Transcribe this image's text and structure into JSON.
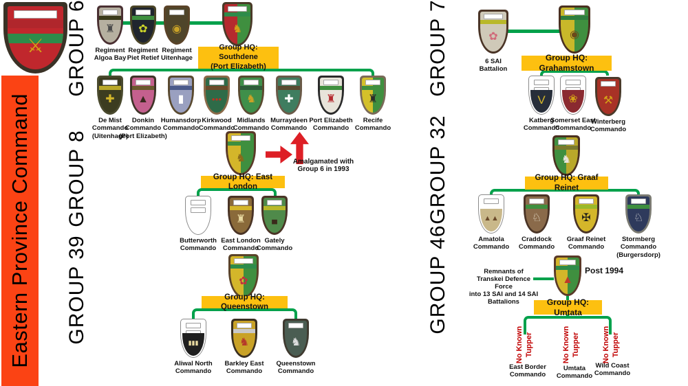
{
  "command": {
    "title": "Eastern Province Command",
    "bar_color": "#fb4314"
  },
  "colors": {
    "connector": "#00A14B",
    "hq_label_bg": "#FDC010",
    "arrow_red": "#DD1F26",
    "no_flash_red": "#C00000"
  },
  "annotations": {
    "amalgamated": "Amalgamated with\nGroup 6 in 1993",
    "post_1994": "Post 1994",
    "remnants": "Remnants of\nTranskei Defence Force\ninto 13 SAI and 14 SAI\nBattalions",
    "no_known": "No Known\nTupper"
  },
  "groups": {
    "g6": {
      "title": "GROUP 6",
      "hq_label": "Group HQ: Southdene\n(Port Elizabeth)"
    },
    "g8": {
      "title": "GROUP 8",
      "hq_label": "Group HQ: East London"
    },
    "g39": {
      "title": "GROUP 39",
      "hq_label": "Group HQ: Queenstown"
    },
    "g7": {
      "title": "GROUP 7",
      "hq_label": "Group HQ: Grahamstown"
    },
    "g32": {
      "title": "GROUP 32",
      "hq_label": "Group HQ: Graaf Reinet"
    },
    "g46": {
      "title": "GROUP 46",
      "hq_label": "Group HQ: Umtata",
      "children": [
        "East Border\nCommando",
        "Umtata\nCommando",
        "Wild Coast\nCommando"
      ]
    }
  },
  "badges": {
    "command": {
      "label": "",
      "border": "#3a3226",
      "slots": 1,
      "band": "#b0262c",
      "field": "#c0272d",
      "stripe": "#2e8b4a",
      "emblem": "⚔",
      "emblemColor": "#d4a017",
      "emblemName": "crossed-swords-icon"
    },
    "algoa_bay": {
      "label": "Regiment\nAlgoa Bay",
      "border": "#4a3032",
      "slots": 1,
      "band": "#3a3a1a",
      "field": "#b6b0a0",
      "emblem": "♜",
      "emblemColor": "#4a4a4a",
      "emblemName": "lighthouse-icon"
    },
    "piet_retief": {
      "label": "Regiment\nPiet Retief",
      "border": "#4a4426",
      "slots": 1,
      "band": "#3f8f3f",
      "field": "#20252e",
      "emblem": "✿",
      "emblemColor": "#cbd42a",
      "emblemName": "protea-icon"
    },
    "uitenhage": {
      "label": "Regiment\nUitenhage",
      "border": "#5a4328",
      "slots": 1,
      "field": "#4f452a",
      "emblem": "◉",
      "emblemColor": "#c9a227",
      "emblemName": "wreath-icon"
    },
    "hq6": {
      "label": "",
      "border": "#4a3a28",
      "slots": 1,
      "band": "#2e8b4a",
      "field": "#b52a2e",
      "field2": "#3f8f3f",
      "emblem": "♞",
      "emblemColor": "#d4a017",
      "emblemName": "elephant-icon"
    },
    "de_mist": {
      "label": "De Mist\nCommando\n(Uitenhage)",
      "border": "#4a4a2e",
      "slots": 1,
      "band": "#b9a82a",
      "field": "#3c3c20",
      "emblem": "✚",
      "emblemColor": "#d4b62a",
      "emblemName": "cross-icon"
    },
    "donkin": {
      "label": "Donkin\nCommando\n(Port Elizabeth)",
      "border": "#3f3428",
      "slots": 1,
      "band": "#6a5a2e",
      "field": "#c4608e",
      "emblem": "▲",
      "emblemColor": "#3a2a20",
      "emblemName": "pyramid-elephant-icon"
    },
    "humansdorp": {
      "label": "Humansdorp\nCommando",
      "border": "#5a4a30",
      "slots": 1,
      "band": "#4a5a8a",
      "field": "#9aa0c0",
      "emblem": "▮",
      "emblemColor": "#ffffff",
      "emblemName": "monument-icon"
    },
    "kirkwood": {
      "label": "Kirkwood\nCommando",
      "border": "#8a6a48",
      "slots": 1,
      "band": "#6b4a2a",
      "field": "#2e6b48",
      "emblem": "●●●",
      "emblemColor": "#c03020",
      "esize": 8,
      "emblemName": "three-discs-icon"
    },
    "midlands": {
      "label": "Midlands\nCommando",
      "border": "#5a4a30",
      "slots": 1,
      "band": "#2e5c3a",
      "field": "#3f8f4a",
      "emblem": "♞",
      "emblemColor": "#c9a227",
      "emblemName": "leopard-icon"
    },
    "murraydeen": {
      "label": "Murraydeen\nCommando",
      "border": "#6a5a48",
      "slots": 1,
      "band": "#5a4a30",
      "field": "#3f7d5f",
      "emblem": "✚",
      "emblemColor": "#ffffff",
      "emblemName": "cross-icon"
    },
    "port_elizabeth": {
      "label": "Port Elizabeth\nCommando",
      "border": "#2b2b2b",
      "slots": 1,
      "band": "#3f8f3f",
      "field": "#e8e4da",
      "emblem": "♜",
      "emblemColor": "#b52a2e",
      "emblemName": "castle-icon"
    },
    "recife": {
      "label": "Recife\nCommando",
      "border": "#7a6a58",
      "slots": 1,
      "band": "#3f8f3f",
      "field": "#d4c02a",
      "field2": "#3f8f3f",
      "emblem": "♜",
      "emblemColor": "#2b2b2b",
      "emblemName": "tower-icon"
    },
    "hq8": {
      "label": "",
      "border": "#5a3a28",
      "slots": 1,
      "band": "#3f8f3f",
      "field": "#d4b62a",
      "field2": "#3f8f3f",
      "emblem": "♞",
      "emblemColor": "#8a6a1a",
      "emblemName": "buffalo-icon"
    },
    "butterworth": {
      "label": "Butterworth\nCommando",
      "ghost": true,
      "slots": 2,
      "field": "#ffffff",
      "emblemName": "blank-flash"
    },
    "east_london_c": {
      "label": "East London\nCommando",
      "border": "#4a3426",
      "slots": 1,
      "band": "#d4b62a",
      "field": "#8a6a3a",
      "emblem": "♜",
      "emblemColor": "#e8d9a0",
      "emblemName": "towers-icon"
    },
    "gately": {
      "label": "Gately\nCommando",
      "border": "#4a3426",
      "slots": 1,
      "band": "#b9b82a",
      "field": "#4f8a4a",
      "emblem": "▄",
      "emblemColor": "#3a2a1a",
      "esize": 11,
      "emblemName": "boat-icon"
    },
    "hq39": {
      "label": "",
      "border": "#5a4328",
      "slots": 1,
      "band": "#2e8b4a",
      "field": "#d4b62a",
      "field2": "#3f8f3f",
      "emblem": "✿",
      "emblemColor": "#c03040",
      "emblemName": "rose-icon"
    },
    "aliwal": {
      "label": "Aliwal North\nCommando",
      "ghost": true,
      "slots": 2,
      "field": "#ffffff",
      "lower": "#1f1f1f",
      "emblem": "▮▮▮",
      "emblemColor": "#e8d9a0",
      "esize": 9,
      "emblemName": "columns-icon"
    },
    "barkley": {
      "label": "Barkley East\nCommando",
      "border": "#3a2f20",
      "slots": 1,
      "band": "#c9c9c9",
      "field": "#c9a227",
      "emblem": "♞",
      "emblemColor": "#b5392a",
      "emblemName": "stag-icon"
    },
    "queenstown_c": {
      "label": "Queenstown\nCommando",
      "border": "#3f3a30",
      "slots": 1,
      "field": "#4a5d52",
      "emblem": "♞",
      "emblemColor": "#dcdcdc",
      "emblemName": "springbok-icon"
    },
    "sai6": {
      "label": "6 SAI\nBattalion",
      "border": "#4a3426",
      "slots": 1,
      "band": "#b9b82a",
      "field": "#cfc9b8",
      "emblem": "✿",
      "emblemColor": "#d06a7a",
      "emblemName": "strelitzia-icon"
    },
    "hq7": {
      "label": "",
      "border": "#4a3020",
      "slots": 1,
      "band": "#2e7d3f",
      "field": "#c9b82a",
      "field2": "#3f8f3f",
      "emblem": "◉",
      "emblemColor": "#6b4a1a",
      "emblemName": "kingfisher-icon"
    },
    "katberg": {
      "label": "Katberg\nCommando",
      "ghost": true,
      "slots": 2,
      "field": "#ffffff",
      "lower": "#272e3a",
      "emblem": "V",
      "emblemColor": "#d4b62a",
      "esize": 17,
      "emblemName": "chevron-icon"
    },
    "somerset": {
      "label": "Somerset East\nCommando",
      "ghost": true,
      "slots": 2,
      "field": "#ffffff",
      "lower": "#8a2a30",
      "emblem": "❀",
      "emblemColor": "#d4a017",
      "emblemName": "sunflower-icon"
    },
    "winterberg": {
      "label": "Winterberg\nCommando",
      "border": "#4a3a2a",
      "slots": 1,
      "field": "#a83226",
      "emblem": "⚒",
      "emblemColor": "#d4a017",
      "emblemName": "axe-icon"
    },
    "hq32": {
      "label": "",
      "border": "#4a3020",
      "slots": 1,
      "band": "#7a7a2e",
      "field": "#3f8f3f",
      "field2": "#b9a82a",
      "emblem": "♞",
      "emblemColor": "#e8e4da",
      "emblemName": "lion-icon"
    },
    "amatola": {
      "label": "Amatola\nCommando",
      "ghost": true,
      "slots": 1,
      "field": "#ffffff",
      "lower": "#c9b88a",
      "emblem": "▲▲",
      "emblemColor": "#6b4a2a",
      "esize": 11,
      "emblemName": "mountains-icon"
    },
    "craddock": {
      "label": "Craddock\nCommando",
      "border": "#4a3426",
      "slots": 1,
      "band": "#3f8f3f",
      "field": "#8a6a4a",
      "emblem": "♘",
      "emblemColor": "#f0ead8",
      "emblemName": "springbok-icon"
    },
    "graaf_reinet_c": {
      "label": "Graaf Reinet\nCommando",
      "border": "#4a3426",
      "slots": 1,
      "band": "#9ab92a",
      "field": "#d4b62a",
      "emblem": "✠",
      "emblemColor": "#1a1a1a",
      "emblemName": "eagle-icon"
    },
    "stormberg": {
      "label": "Stormberg\nCommando\n(Burgersdorp)",
      "border": "#7a7a72",
      "slots": 1,
      "band": "#3f8f3f",
      "field": "#2e3a5c",
      "emblem": "♘",
      "emblemColor": "#d8d8d8",
      "emblemName": "crane-icon"
    },
    "hq46": {
      "label": "",
      "border": "#5a3a28",
      "slots": 1,
      "band": "#2e8b4a",
      "field": "#d4b62a",
      "field2": "#3f8f3f",
      "emblem": "▲",
      "emblemColor": "#c0392b",
      "emblemName": "diagonal-emblem-icon"
    }
  }
}
